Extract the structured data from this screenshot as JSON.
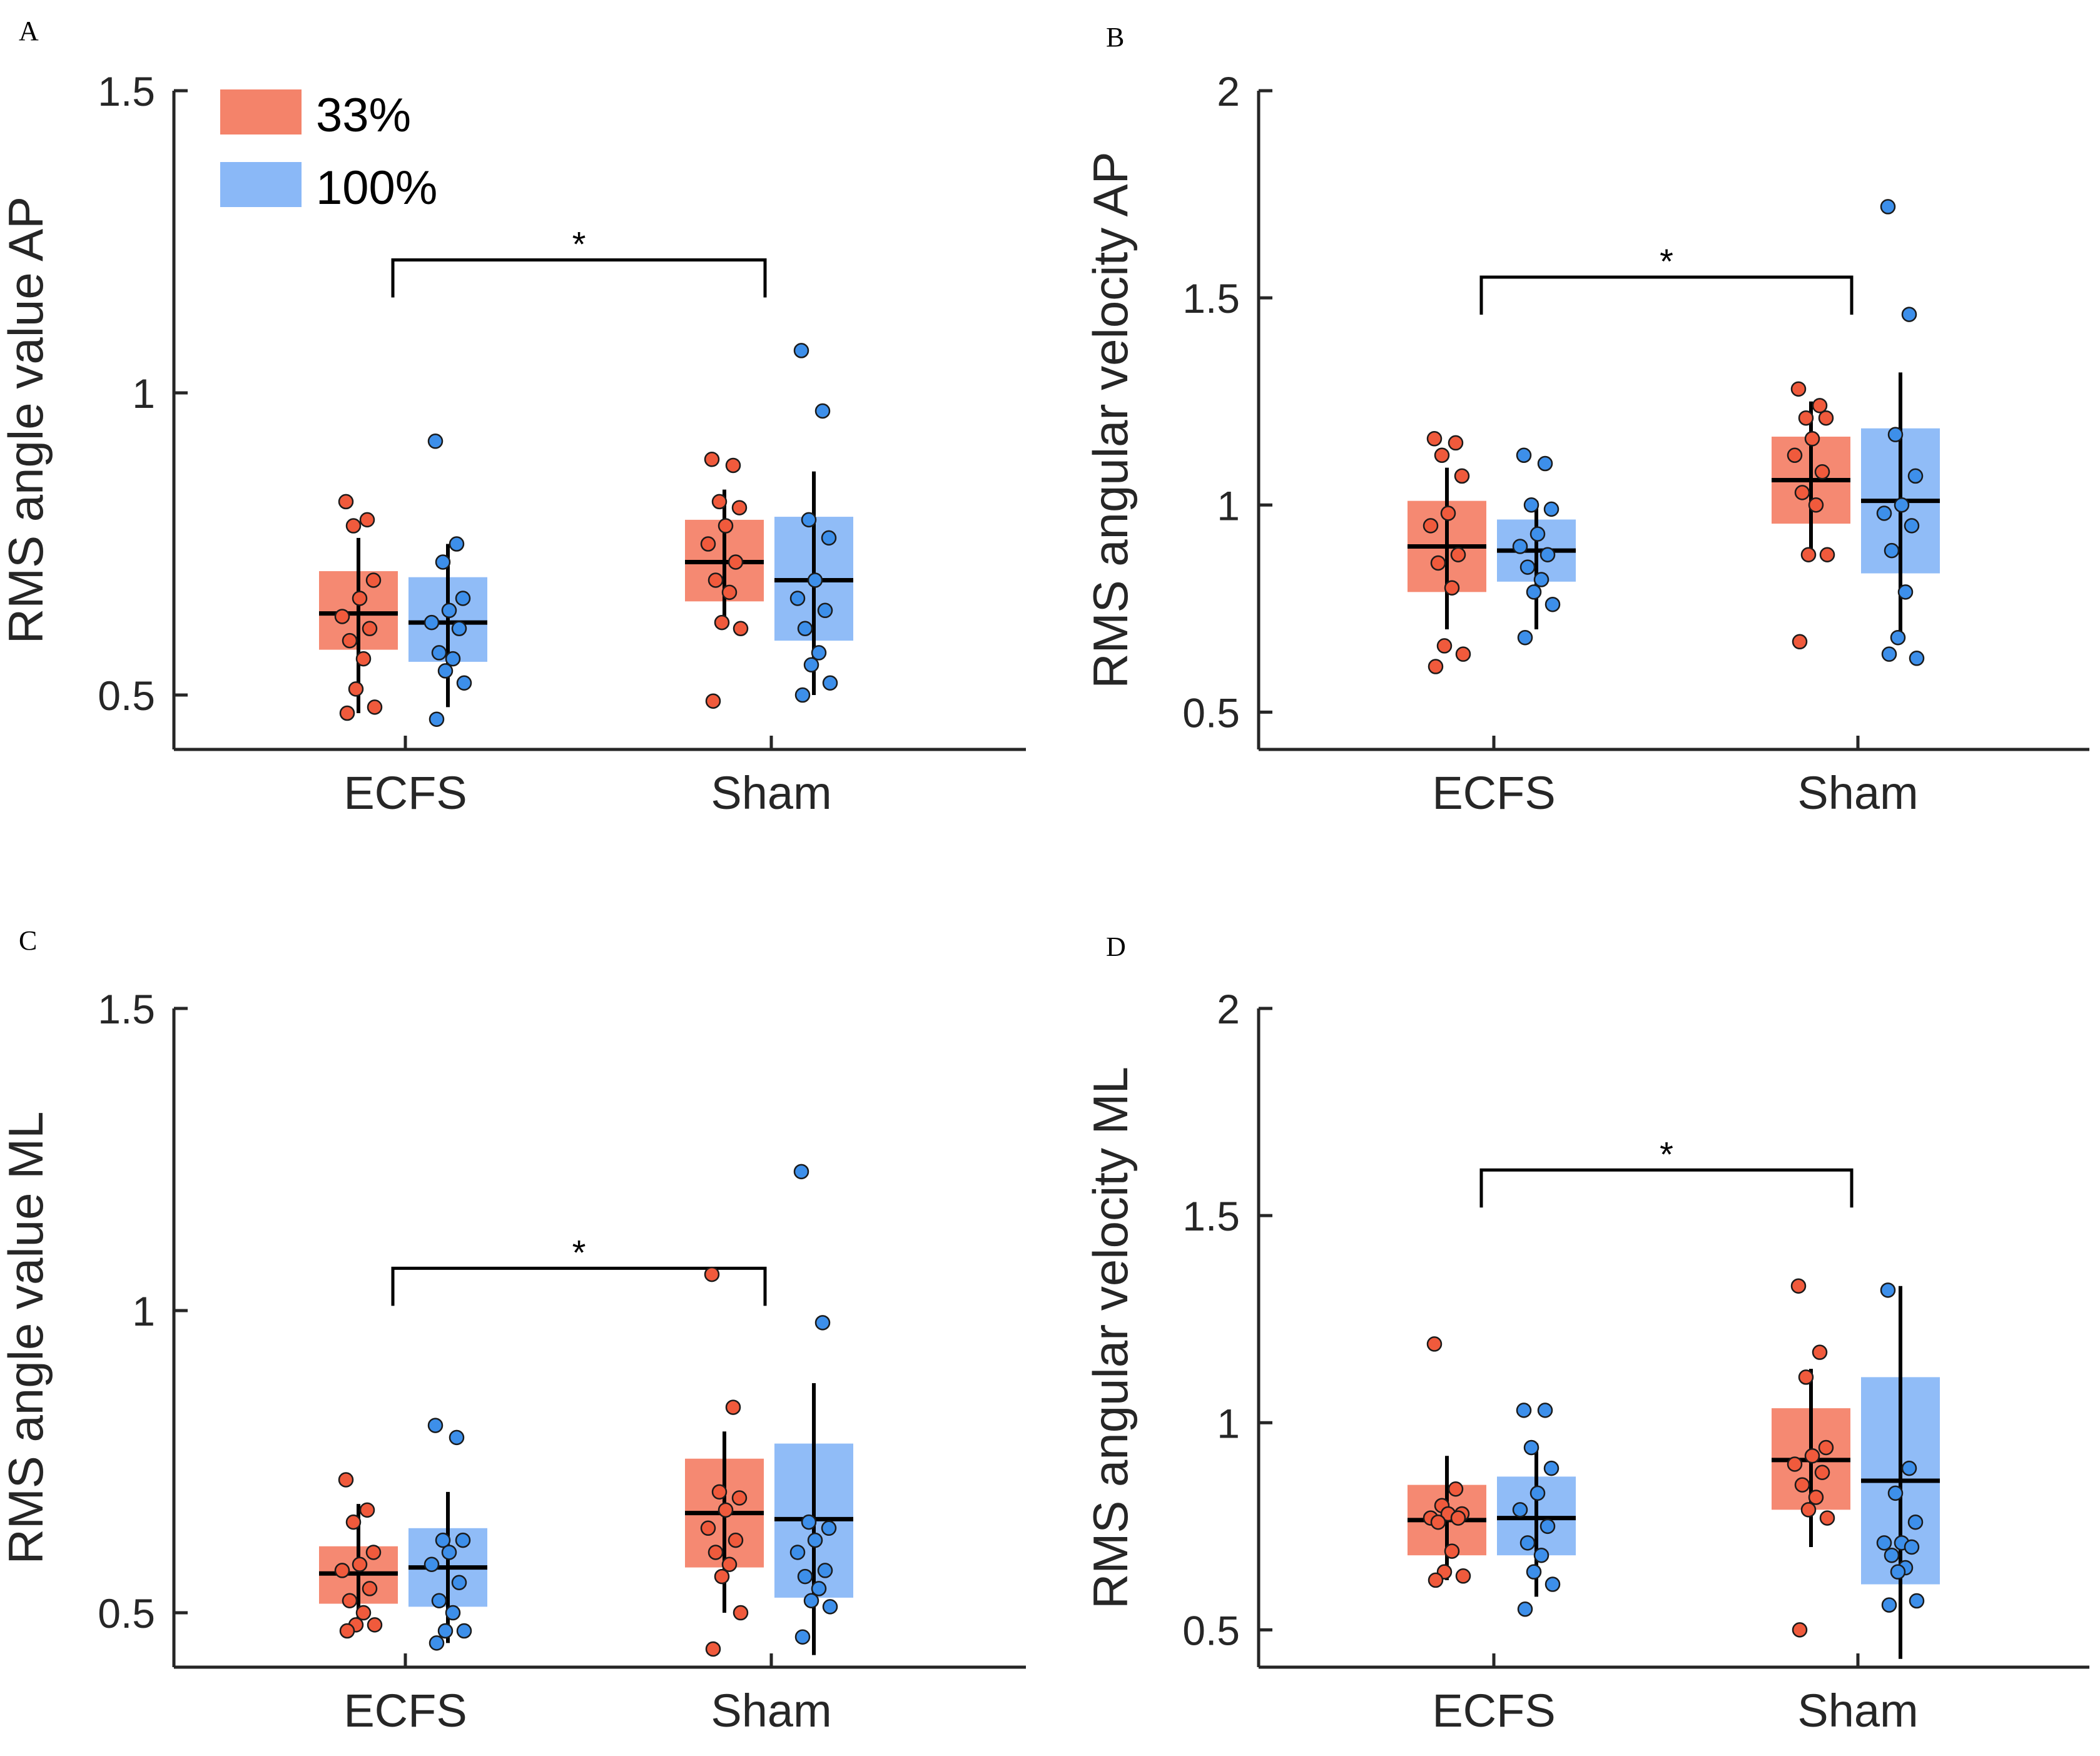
{
  "legend": {
    "items": [
      {
        "label": "33%",
        "color": "#f4836a"
      },
      {
        "label": "100%",
        "color": "#8ab8f7"
      }
    ]
  },
  "colors": {
    "box33": "#f4836a",
    "box100": "#8ab8f7",
    "dot33": "#f05a3c",
    "dot100": "#3d8fea",
    "axis": "#262626"
  },
  "chart_data": [
    {
      "panel": "A",
      "type": "box",
      "ylabel": "RMS angle value AP",
      "categories": [
        "ECFS",
        "Sham"
      ],
      "ylim": [
        0.41,
        1.5
      ],
      "yticks": [
        0.5,
        1,
        1.5
      ],
      "ytick_labels": [
        "0.5",
        "1",
        "1.5"
      ],
      "significance": {
        "between": [
          "ECFS",
          "Sham"
        ],
        "y": 1.22,
        "label": "*"
      },
      "series": [
        {
          "name": "33%",
          "boxes": [
            {
              "category": "ECFS",
              "q1": 0.575,
              "median": 0.635,
              "q3": 0.705,
              "whisker_low": 0.47,
              "whisker_high": 0.76,
              "points": [
                0.82,
                0.79,
                0.78,
                0.69,
                0.66,
                0.63,
                0.61,
                0.59,
                0.56,
                0.51,
                0.48,
                0.47
              ]
            },
            {
              "category": "Sham",
              "q1": 0.655,
              "median": 0.72,
              "q3": 0.79,
              "whisker_low": 0.61,
              "whisker_high": 0.84,
              "points": [
                0.89,
                0.88,
                0.82,
                0.81,
                0.78,
                0.75,
                0.72,
                0.69,
                0.67,
                0.62,
                0.61,
                0.49
              ]
            }
          ]
        },
        {
          "name": "100%",
          "boxes": [
            {
              "category": "ECFS",
              "q1": 0.555,
              "median": 0.62,
              "q3": 0.695,
              "whisker_low": 0.48,
              "whisker_high": 0.75,
              "points": [
                0.92,
                0.75,
                0.72,
                0.66,
                0.64,
                0.62,
                0.61,
                0.57,
                0.56,
                0.54,
                0.52,
                0.46
              ]
            },
            {
              "category": "Sham",
              "q1": 0.59,
              "median": 0.69,
              "q3": 0.795,
              "whisker_low": 0.5,
              "whisker_high": 0.87,
              "points": [
                1.07,
                0.97,
                0.79,
                0.76,
                0.69,
                0.66,
                0.64,
                0.61,
                0.57,
                0.55,
                0.52,
                0.5
              ]
            }
          ]
        }
      ]
    },
    {
      "panel": "B",
      "type": "box",
      "ylabel": "RMS angular velocity AP",
      "categories": [
        "ECFS",
        "Sham"
      ],
      "ylim": [
        0.41,
        2.0
      ],
      "yticks": [
        0.5,
        1,
        1.5,
        2
      ],
      "ytick_labels": [
        "0.5",
        "1",
        "1.5",
        "2"
      ],
      "significance": {
        "between": [
          "ECFS",
          "Sham"
        ],
        "y": 1.55,
        "label": "*"
      },
      "series": [
        {
          "name": "33%",
          "boxes": [
            {
              "category": "ECFS",
              "q1": 0.79,
              "median": 0.9,
              "q3": 1.01,
              "whisker_low": 0.7,
              "whisker_high": 1.09,
              "points": [
                1.16,
                1.15,
                1.12,
                1.07,
                0.98,
                0.95,
                0.88,
                0.86,
                0.8,
                0.66,
                0.64,
                0.61
              ]
            },
            {
              "category": "Sham",
              "q1": 0.955,
              "median": 1.06,
              "q3": 1.165,
              "whisker_low": 0.88,
              "whisker_high": 1.25,
              "points": [
                1.28,
                1.24,
                1.21,
                1.21,
                1.16,
                1.12,
                1.08,
                1.03,
                1.0,
                0.88,
                0.88,
                0.67
              ]
            }
          ]
        },
        {
          "name": "100%",
          "boxes": [
            {
              "category": "ECFS",
              "q1": 0.815,
              "median": 0.89,
              "q3": 0.965,
              "whisker_low": 0.7,
              "whisker_high": 1.01,
              "points": [
                1.12,
                1.1,
                1.0,
                0.99,
                0.93,
                0.9,
                0.88,
                0.85,
                0.82,
                0.79,
                0.76,
                0.68
              ]
            },
            {
              "category": "Sham",
              "q1": 0.835,
              "median": 1.01,
              "q3": 1.185,
              "whisker_low": 0.68,
              "whisker_high": 1.32,
              "points": [
                1.72,
                1.46,
                1.17,
                1.07,
                1.0,
                0.98,
                0.95,
                0.89,
                0.79,
                0.68,
                0.63,
                0.64
              ]
            }
          ]
        }
      ]
    },
    {
      "panel": "C",
      "type": "box",
      "ylabel": "RMS angle value ML",
      "categories": [
        "ECFS",
        "Sham"
      ],
      "ylim": [
        0.41,
        1.5
      ],
      "yticks": [
        0.5,
        1,
        1.5
      ],
      "ytick_labels": [
        "0.5",
        "1",
        "1.5"
      ],
      "significance": {
        "between": [
          "ECFS",
          "Sham"
        ],
        "y": 1.07,
        "label": "*"
      },
      "series": [
        {
          "name": "33%",
          "boxes": [
            {
              "category": "ECFS",
              "q1": 0.515,
              "median": 0.565,
              "q3": 0.61,
              "whisker_low": 0.47,
              "whisker_high": 0.68,
              "points": [
                0.72,
                0.67,
                0.65,
                0.6,
                0.58,
                0.57,
                0.54,
                0.52,
                0.5,
                0.48,
                0.48,
                0.47
              ]
            },
            {
              "category": "Sham",
              "q1": 0.575,
              "median": 0.665,
              "q3": 0.755,
              "whisker_low": 0.5,
              "whisker_high": 0.8,
              "points": [
                1.06,
                0.84,
                0.7,
                0.69,
                0.67,
                0.64,
                0.62,
                0.6,
                0.58,
                0.56,
                0.5,
                0.44
              ]
            }
          ]
        },
        {
          "name": "100%",
          "boxes": [
            {
              "category": "ECFS",
              "q1": 0.51,
              "median": 0.575,
              "q3": 0.64,
              "whisker_low": 0.45,
              "whisker_high": 0.7,
              "points": [
                0.81,
                0.79,
                0.62,
                0.62,
                0.6,
                0.58,
                0.55,
                0.52,
                0.5,
                0.47,
                0.47,
                0.45
              ]
            },
            {
              "category": "Sham",
              "q1": 0.525,
              "median": 0.655,
              "q3": 0.78,
              "whisker_low": 0.43,
              "whisker_high": 0.88,
              "points": [
                1.23,
                0.98,
                0.65,
                0.64,
                0.62,
                0.6,
                0.57,
                0.56,
                0.54,
                0.52,
                0.51,
                0.46
              ]
            }
          ]
        }
      ]
    },
    {
      "panel": "D",
      "type": "box",
      "ylabel": "RMS angular velocity ML",
      "categories": [
        "ECFS",
        "Sham"
      ],
      "ylim": [
        0.41,
        2.0
      ],
      "yticks": [
        0.5,
        1,
        1.5,
        2
      ],
      "ytick_labels": [
        "0.5",
        "1",
        "1.5",
        "2"
      ],
      "significance": {
        "between": [
          "ECFS",
          "Sham"
        ],
        "y": 1.61,
        "label": "*"
      },
      "series": [
        {
          "name": "33%",
          "boxes": [
            {
              "category": "ECFS",
              "q1": 0.68,
              "median": 0.765,
              "q3": 0.85,
              "whisker_low": 0.62,
              "whisker_high": 0.92,
              "points": [
                1.19,
                0.84,
                0.8,
                0.78,
                0.78,
                0.77,
                0.77,
                0.76,
                0.69,
                0.64,
                0.63,
                0.62
              ]
            },
            {
              "category": "Sham",
              "q1": 0.79,
              "median": 0.91,
              "q3": 1.035,
              "whisker_low": 0.7,
              "whisker_high": 1.13,
              "points": [
                1.33,
                1.17,
                1.11,
                0.94,
                0.92,
                0.9,
                0.88,
                0.85,
                0.82,
                0.79,
                0.77,
                0.5
              ]
            }
          ]
        },
        {
          "name": "100%",
          "boxes": [
            {
              "category": "ECFS",
              "q1": 0.68,
              "median": 0.77,
              "q3": 0.87,
              "whisker_low": 0.58,
              "whisker_high": 0.95,
              "points": [
                1.03,
                1.03,
                0.94,
                0.89,
                0.83,
                0.79,
                0.75,
                0.71,
                0.68,
                0.64,
                0.61,
                0.55
              ]
            },
            {
              "category": "Sham",
              "q1": 0.61,
              "median": 0.86,
              "q3": 1.11,
              "whisker_low": 0.43,
              "whisker_high": 1.33,
              "points": [
                1.32,
                0.89,
                0.83,
                0.76,
                0.71,
                0.71,
                0.7,
                0.68,
                0.65,
                0.64,
                0.57,
                0.56
              ]
            }
          ]
        }
      ]
    }
  ]
}
